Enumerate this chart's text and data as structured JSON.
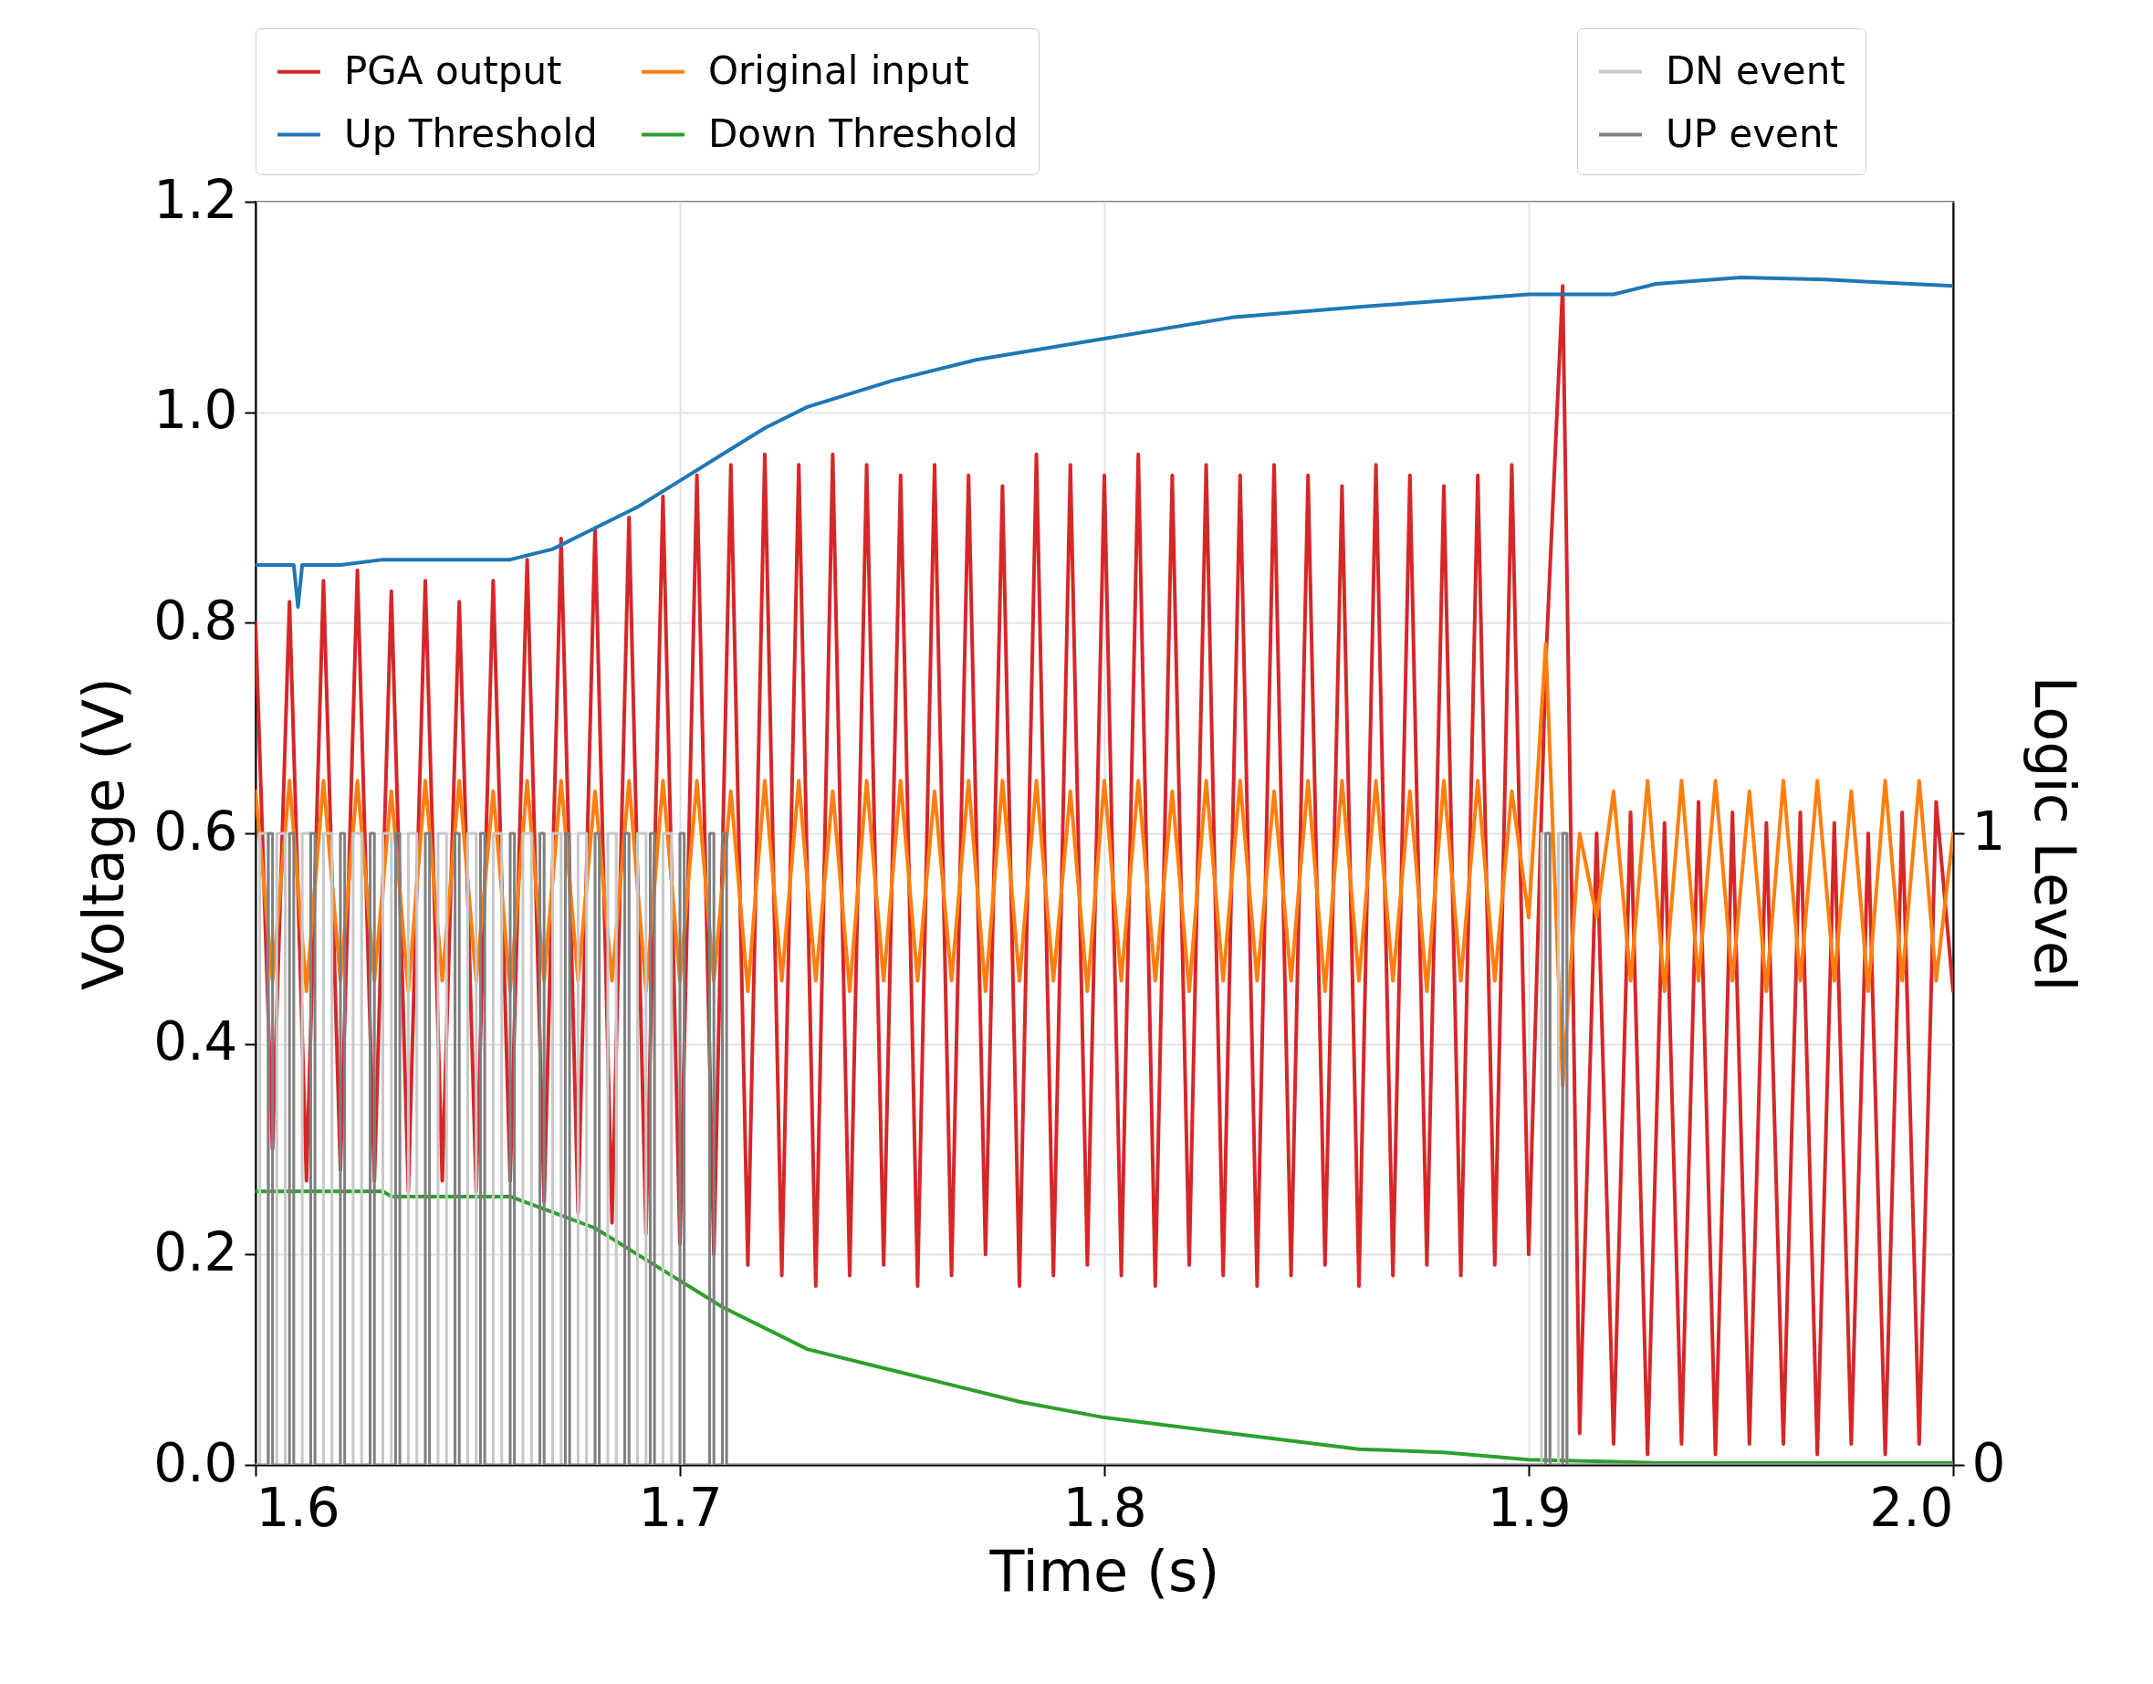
{
  "chart_data": {
    "type": "line",
    "xlabel": "Time (s)",
    "ylabel": "Voltage (V)",
    "y2label": "Logic Level",
    "xlim": [
      1.6,
      2.0
    ],
    "xticks": [
      1.6,
      1.7,
      1.8,
      1.9,
      {
        "value": 2.0,
        "label": "2.0"
      }
    ],
    "ylim": [
      0,
      1.2
    ],
    "yticks": [
      {
        "value": 0,
        "label": "0.0"
      },
      0.2,
      0.4,
      0.6,
      0.8,
      {
        "value": 1.0,
        "label": "1.0"
      },
      1.2
    ],
    "y2lim": [
      0,
      2
    ],
    "y2ticks": [
      0,
      1
    ],
    "grid": true,
    "legend": "top",
    "x": [
      1.6,
      1.604,
      1.608,
      1.612,
      1.616,
      1.62,
      1.624,
      1.628,
      1.632,
      1.636,
      1.64,
      1.644,
      1.648,
      1.652,
      1.656,
      1.66,
      1.664,
      1.668,
      1.672,
      1.676,
      1.68,
      1.684,
      1.688,
      1.692,
      1.696,
      1.7,
      1.704,
      1.708,
      1.712,
      1.716,
      1.72,
      1.724,
      1.728,
      1.732,
      1.736,
      1.74,
      1.744,
      1.748,
      1.752,
      1.756,
      1.76,
      1.764,
      1.768,
      1.772,
      1.776,
      1.78,
      1.784,
      1.788,
      1.792,
      1.796,
      1.8,
      1.804,
      1.808,
      1.812,
      1.816,
      1.82,
      1.824,
      1.828,
      1.832,
      1.836,
      1.84,
      1.844,
      1.848,
      1.852,
      1.856,
      1.86,
      1.864,
      1.868,
      1.872,
      1.876,
      1.88,
      1.884,
      1.888,
      1.892,
      1.896,
      1.9,
      1.904,
      1.908,
      1.912,
      1.916,
      1.92,
      1.924,
      1.928,
      1.932,
      1.936,
      1.94,
      1.944,
      1.948,
      1.952,
      1.956,
      1.96,
      1.964,
      1.968,
      1.972,
      1.976,
      1.98,
      1.984,
      1.988,
      1.992,
      1.996,
      2.0
    ],
    "series": [
      {
        "name": "PGA output",
        "color": "#d62728",
        "values": [
          0.8,
          0.3,
          0.82,
          0.27,
          0.84,
          0.28,
          0.85,
          0.27,
          0.83,
          0.26,
          0.84,
          0.27,
          0.82,
          0.26,
          0.84,
          0.27,
          0.86,
          0.25,
          0.88,
          0.24,
          0.89,
          0.23,
          0.9,
          0.22,
          0.92,
          0.21,
          0.94,
          0.2,
          0.95,
          0.19,
          0.96,
          0.18,
          0.95,
          0.17,
          0.96,
          0.18,
          0.95,
          0.19,
          0.94,
          0.17,
          0.95,
          0.18,
          0.94,
          0.2,
          0.93,
          0.17,
          0.96,
          0.18,
          0.95,
          0.19,
          0.94,
          0.18,
          0.96,
          0.17,
          0.94,
          0.19,
          0.95,
          0.18,
          0.94,
          0.17,
          0.95,
          0.18,
          0.94,
          0.19,
          0.93,
          0.17,
          0.95,
          0.18,
          0.94,
          0.19,
          0.93,
          0.18,
          0.94,
          0.19,
          0.95,
          0.2,
          0.76,
          1.12,
          0.03,
          0.6,
          0.02,
          0.62,
          0.01,
          0.61,
          0.02,
          0.63,
          0.01,
          0.62,
          0.02,
          0.61,
          0.02,
          0.62,
          0.01,
          0.61,
          0.02,
          0.6,
          0.01,
          0.62,
          0.02,
          0.63,
          0.45
        ]
      },
      {
        "name": "Original input",
        "color": "#ff7f0e",
        "values": [
          0.64,
          0.46,
          0.65,
          0.45,
          0.65,
          0.46,
          0.65,
          0.46,
          0.64,
          0.45,
          0.65,
          0.46,
          0.65,
          0.46,
          0.64,
          0.45,
          0.65,
          0.46,
          0.65,
          0.46,
          0.64,
          0.46,
          0.65,
          0.45,
          0.65,
          0.46,
          0.65,
          0.46,
          0.64,
          0.45,
          0.65,
          0.46,
          0.65,
          0.46,
          0.64,
          0.45,
          0.65,
          0.46,
          0.65,
          0.46,
          0.64,
          0.46,
          0.65,
          0.45,
          0.65,
          0.46,
          0.65,
          0.46,
          0.64,
          0.45,
          0.65,
          0.46,
          0.65,
          0.46,
          0.64,
          0.45,
          0.65,
          0.46,
          0.65,
          0.46,
          0.64,
          0.46,
          0.65,
          0.45,
          0.65,
          0.46,
          0.65,
          0.46,
          0.64,
          0.45,
          0.65,
          0.46,
          0.65,
          0.46,
          0.64,
          0.52,
          0.78,
          0.36,
          0.6,
          0.52,
          0.64,
          0.46,
          0.65,
          0.45,
          0.65,
          0.46,
          0.65,
          0.46,
          0.64,
          0.45,
          0.65,
          0.46,
          0.65,
          0.46,
          0.64,
          0.45,
          0.65,
          0.46,
          0.65,
          0.46,
          0.6
        ]
      },
      {
        "name": "Up Threshold",
        "color": "#1f77b4",
        "x": [
          1.6,
          1.609,
          1.61,
          1.611,
          1.62,
          1.63,
          1.66,
          1.67,
          1.68,
          1.69,
          1.7,
          1.71,
          1.72,
          1.73,
          1.75,
          1.77,
          1.8,
          1.83,
          1.86,
          1.9,
          1.92,
          1.93,
          1.95,
          1.97,
          2.0
        ],
        "values": [
          0.855,
          0.855,
          0.815,
          0.855,
          0.855,
          0.86,
          0.86,
          0.87,
          0.89,
          0.91,
          0.935,
          0.96,
          0.985,
          1.005,
          1.03,
          1.05,
          1.07,
          1.09,
          1.1,
          1.112,
          1.112,
          1.122,
          1.128,
          1.126,
          1.12
        ]
      },
      {
        "name": "Down Threshold",
        "color": "#2ca02c",
        "x": [
          1.6,
          1.63,
          1.632,
          1.66,
          1.67,
          1.68,
          1.69,
          1.7,
          1.71,
          1.73,
          1.75,
          1.78,
          1.8,
          1.83,
          1.86,
          1.88,
          1.9,
          1.93,
          2.0
        ],
        "values": [
          0.26,
          0.26,
          0.255,
          0.255,
          0.24,
          0.225,
          0.2,
          0.175,
          0.15,
          0.11,
          0.09,
          0.06,
          0.045,
          0.03,
          0.015,
          0.012,
          0.005,
          0.002,
          0.002
        ]
      },
      {
        "name": "DN event",
        "color": "#c8c8c8",
        "type": "step",
        "axis": "y2",
        "x": [
          1.6,
          1.601,
          1.603,
          1.605,
          1.607,
          1.611,
          1.613,
          1.616,
          1.618,
          1.623,
          1.625,
          1.63,
          1.632,
          1.636,
          1.638,
          1.643,
          1.645,
          1.65,
          1.652,
          1.656,
          1.658,
          1.663,
          1.665,
          1.67,
          1.672,
          1.676,
          1.678,
          1.683,
          1.685,
          1.69,
          1.692,
          1.696,
          1.698,
          1.903,
          1.905,
          1.907,
          1.909,
          2.0
        ],
        "values": [
          0,
          1,
          0,
          1,
          0,
          1,
          0,
          1,
          0,
          1,
          0,
          1,
          0,
          1,
          0,
          1,
          0,
          1,
          0,
          1,
          0,
          1,
          0,
          1,
          0,
          1,
          0,
          1,
          0,
          1,
          0,
          1,
          0,
          1,
          0,
          1,
          0,
          0
        ]
      },
      {
        "name": "UP event",
        "color": "#7f7f7f",
        "type": "step",
        "axis": "y2",
        "x": [
          1.6,
          1.603,
          1.604,
          1.608,
          1.609,
          1.613,
          1.614,
          1.62,
          1.621,
          1.627,
          1.628,
          1.633,
          1.634,
          1.64,
          1.641,
          1.647,
          1.648,
          1.653,
          1.654,
          1.66,
          1.661,
          1.667,
          1.668,
          1.673,
          1.674,
          1.68,
          1.681,
          1.687,
          1.688,
          1.693,
          1.694,
          1.7,
          1.701,
          1.707,
          1.708,
          1.71,
          1.711,
          1.904,
          1.905,
          1.908,
          1.909,
          2.0
        ],
        "values": [
          0,
          1,
          0,
          1,
          0,
          1,
          0,
          1,
          0,
          1,
          0,
          1,
          0,
          1,
          0,
          1,
          0,
          1,
          0,
          1,
          0,
          1,
          0,
          1,
          0,
          1,
          0,
          1,
          0,
          1,
          0,
          1,
          0,
          1,
          0,
          1,
          0,
          1,
          0,
          1,
          0,
          0
        ]
      }
    ]
  }
}
